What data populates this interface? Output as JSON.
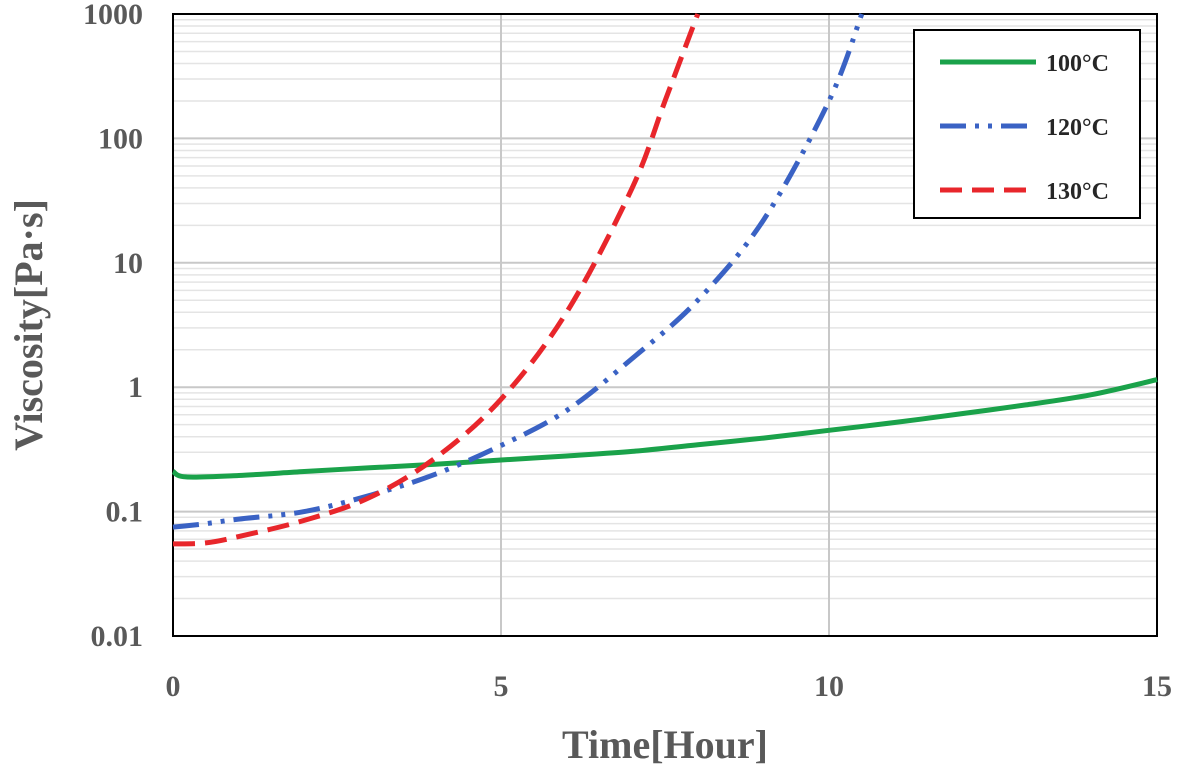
{
  "chart_data": {
    "type": "line",
    "title": "",
    "xlabel": "Time[Hour]",
    "ylabel": "Viscosity[Pa·s]",
    "xlim": [
      0,
      15
    ],
    "ylim": [
      0.01,
      1000
    ],
    "yscale": "log",
    "x_ticks": [
      "0",
      "5",
      "10",
      "15"
    ],
    "y_ticks": [
      "0.01",
      "0.1",
      "1",
      "10",
      "100",
      "1000"
    ],
    "grid": true,
    "legend_position": "top-right",
    "series": [
      {
        "name": "100°C",
        "color": "#1aa24a",
        "style": "solid",
        "x": [
          0,
          0.2,
          1,
          2,
          3,
          4,
          5,
          6,
          7,
          8,
          9,
          10,
          11,
          12,
          13,
          14,
          15
        ],
        "y": [
          0.21,
          0.19,
          0.195,
          0.21,
          0.225,
          0.24,
          0.26,
          0.28,
          0.305,
          0.345,
          0.39,
          0.45,
          0.52,
          0.61,
          0.72,
          0.87,
          1.15
        ]
      },
      {
        "name": "120°C",
        "color": "#3a62c4",
        "style": "dash-dot-dot",
        "x": [
          0,
          0.5,
          1,
          2,
          3,
          4,
          5,
          6,
          7,
          8,
          9,
          10,
          10.5
        ],
        "y": [
          0.075,
          0.08,
          0.087,
          0.1,
          0.135,
          0.2,
          0.34,
          0.65,
          1.7,
          5.0,
          22,
          200,
          1000
        ]
      },
      {
        "name": "130°C",
        "color": "#e8262b",
        "style": "dashed",
        "x": [
          0,
          0.5,
          1,
          2,
          3,
          4,
          5,
          6,
          7,
          7.5,
          8
        ],
        "y": [
          0.055,
          0.056,
          0.063,
          0.085,
          0.13,
          0.27,
          0.8,
          4.0,
          40,
          200,
          1000
        ]
      }
    ]
  }
}
